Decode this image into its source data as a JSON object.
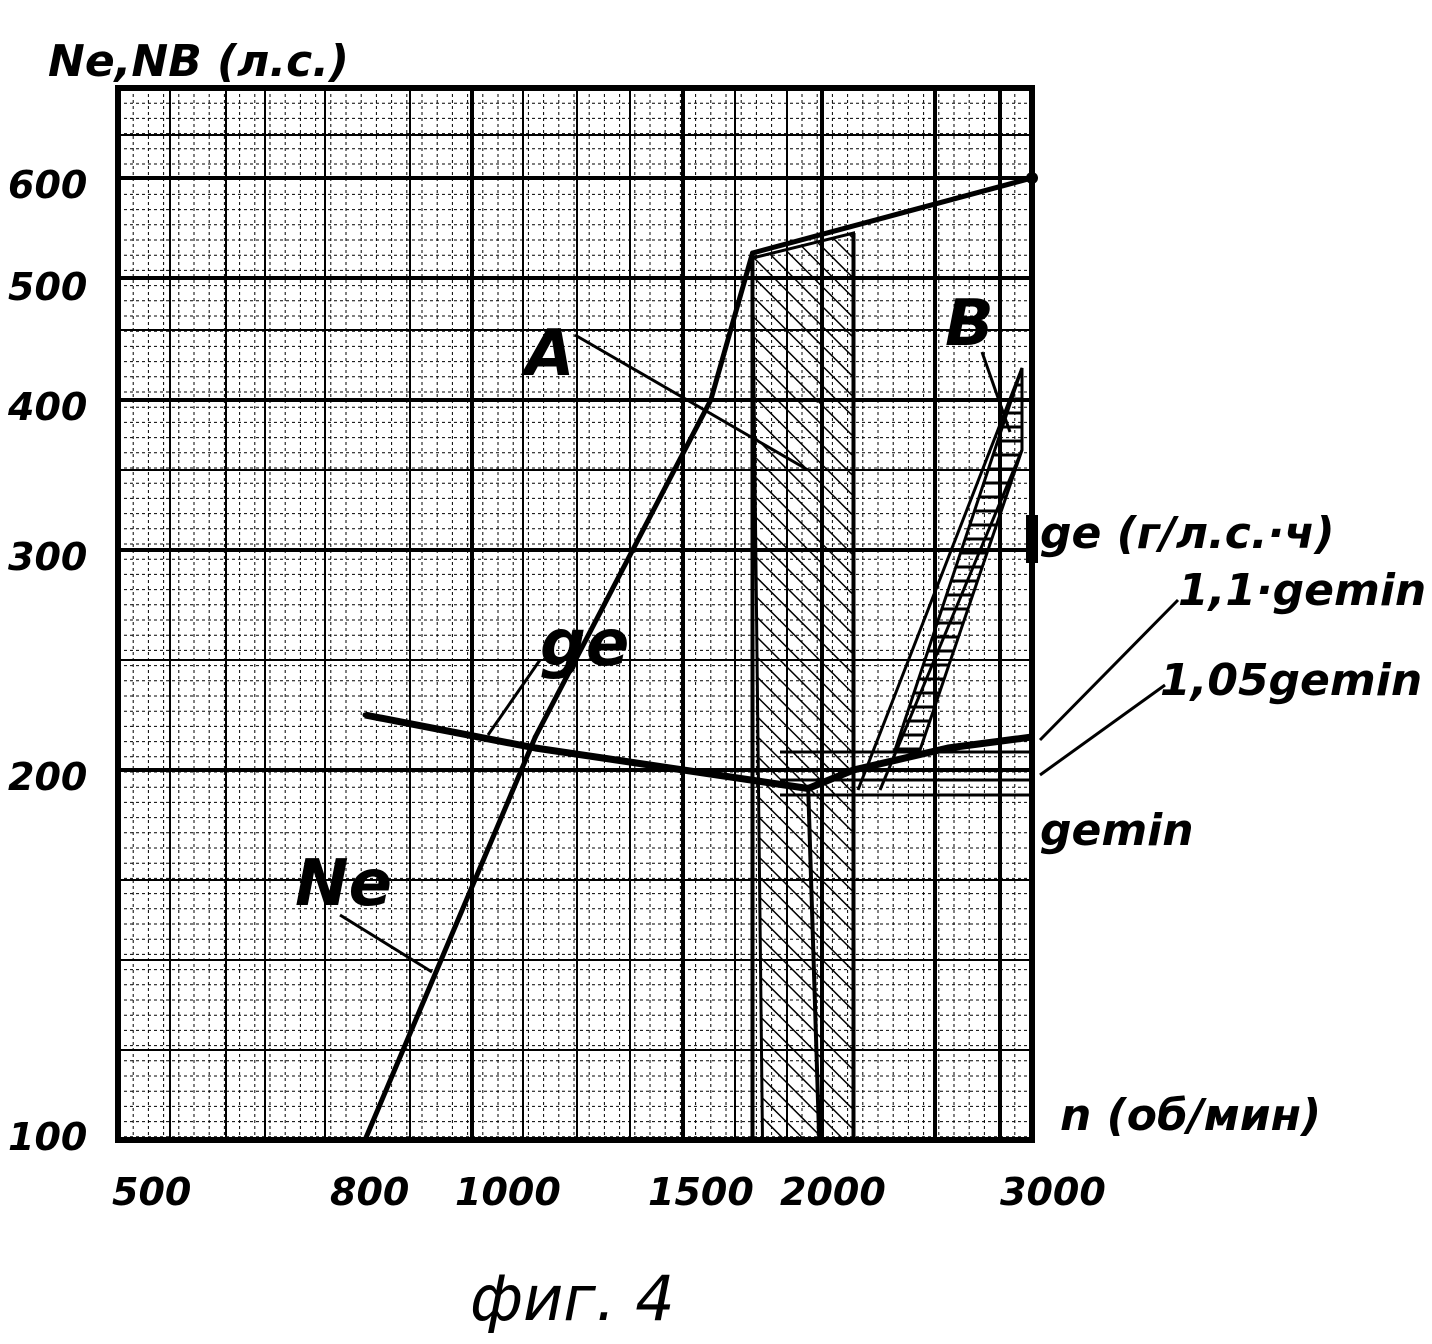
{
  "chart_data": {
    "type": "line",
    "caption": "фиг. 4",
    "ylabel": "Ne, NB (л.с.)",
    "xlabel": "n (об/мин)",
    "y2label": "ge (г/л.с.·ч)",
    "x_ticks": [
      "500",
      "800",
      "1000",
      "1500",
      "2000",
      "3000"
    ],
    "y_ticks": [
      "100",
      "200",
      "300",
      "400",
      "500",
      "600"
    ],
    "series": [
      {
        "name": "Ne",
        "points": [
          [
            800,
            100
          ],
          [
            1150,
            215
          ],
          [
            1600,
            400
          ],
          [
            1750,
            525
          ],
          [
            3000,
            600
          ]
        ]
      },
      {
        "name": "ge",
        "points": [
          [
            800,
            225
          ],
          [
            1150,
            210
          ],
          [
            1950,
            195
          ],
          [
            2150,
            200
          ],
          [
            2600,
            210
          ],
          [
            3000,
            215
          ]
        ]
      }
    ],
    "annotations": [
      {
        "label": "A",
        "note": "diagonally hatched band 1750–2150 об/мин"
      },
      {
        "label": "B",
        "note": "horizontally hatched wedge"
      },
      {
        "label": "1,1·gemin"
      },
      {
        "label": "1,05gemin"
      },
      {
        "label": "gemin"
      }
    ],
    "grid": true
  },
  "text": {
    "ylabel": "Ne,NB (л.с.)",
    "xlabel": "n (об/мин)",
    "y2label": "ge (г/л.с.·ч)",
    "curve_ne": "Ne",
    "curve_ge": "ge",
    "region_a": "A",
    "region_b": "B",
    "ref_11": "1,1·gemin",
    "ref_105": "1,05gemin",
    "ref_min": "gemin",
    "caption": "фиг. 4"
  }
}
